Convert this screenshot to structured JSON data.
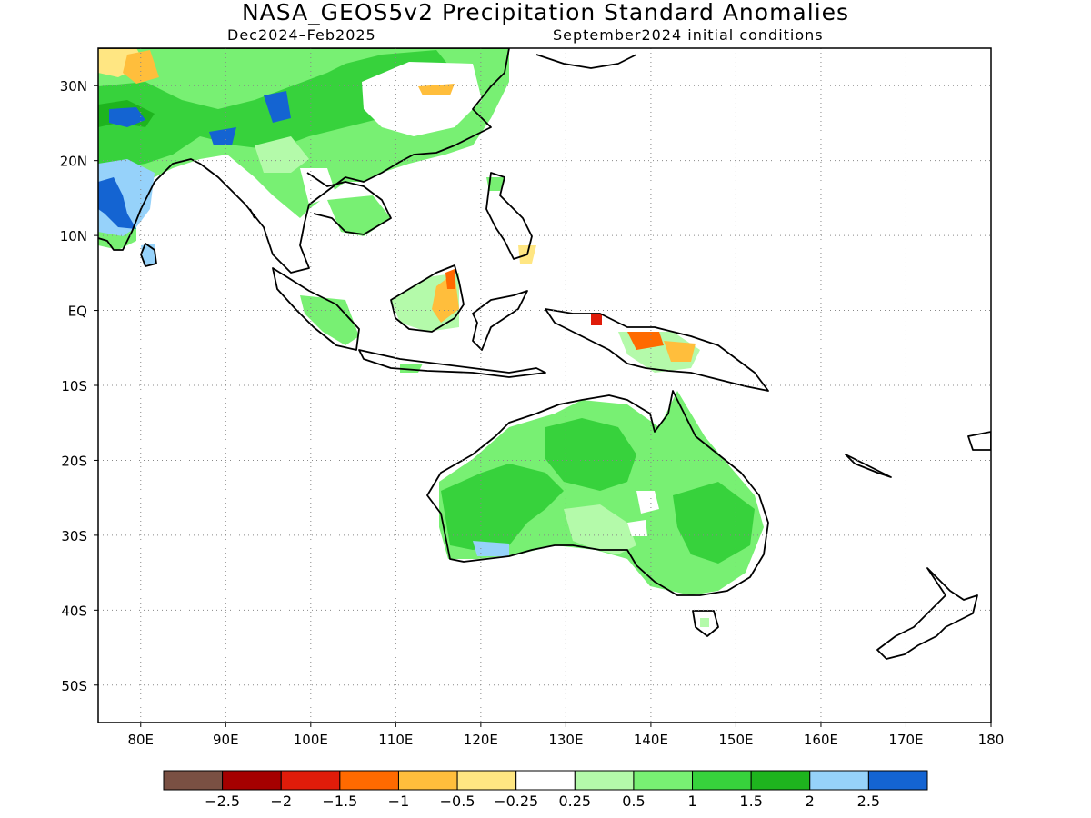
{
  "title": "NASA_GEOS5v2 Precipitation Standard Anomalies",
  "subtitle_left": "Dec2024–Feb2025",
  "subtitle_right": "September2024 initial conditions",
  "map": {
    "lon_range": [
      75,
      180
    ],
    "lat_range": [
      -55,
      35
    ],
    "lon_ticks": [
      {
        "lon": 80,
        "label": "80E"
      },
      {
        "lon": 90,
        "label": "90E"
      },
      {
        "lon": 100,
        "label": "100E"
      },
      {
        "lon": 110,
        "label": "110E"
      },
      {
        "lon": 120,
        "label": "120E"
      },
      {
        "lon": 130,
        "label": "130E"
      },
      {
        "lon": 140,
        "label": "140E"
      },
      {
        "lon": 150,
        "label": "150E"
      },
      {
        "lon": 160,
        "label": "160E"
      },
      {
        "lon": 170,
        "label": "170E"
      },
      {
        "lon": 180,
        "label": "180"
      }
    ],
    "lat_ticks": [
      {
        "lat": 30,
        "label": "30N"
      },
      {
        "lat": 20,
        "label": "20N"
      },
      {
        "lat": 10,
        "label": "10N"
      },
      {
        "lat": 0,
        "label": "EQ"
      },
      {
        "lat": -10,
        "label": "10S"
      },
      {
        "lat": -20,
        "label": "20S"
      },
      {
        "lat": -30,
        "label": "30S"
      },
      {
        "lat": -40,
        "label": "40S"
      },
      {
        "lat": -50,
        "label": "50S"
      }
    ],
    "grid": true
  },
  "colorbar": {
    "colors": [
      "#7a5043",
      "#a50000",
      "#e01c0a",
      "#ff6a00",
      "#ffbe3c",
      "#ffe682",
      "#ffffff",
      "#b4faaa",
      "#78f073",
      "#37d23c",
      "#1eb41e",
      "#96d2fa",
      "#1464d2"
    ],
    "labels": [
      "−2.5",
      "−2",
      "−1.5",
      "−1",
      "−0.5",
      "−0.25",
      "0.25",
      "0.5",
      "1",
      "1.5",
      "2",
      "2.5"
    ]
  }
}
